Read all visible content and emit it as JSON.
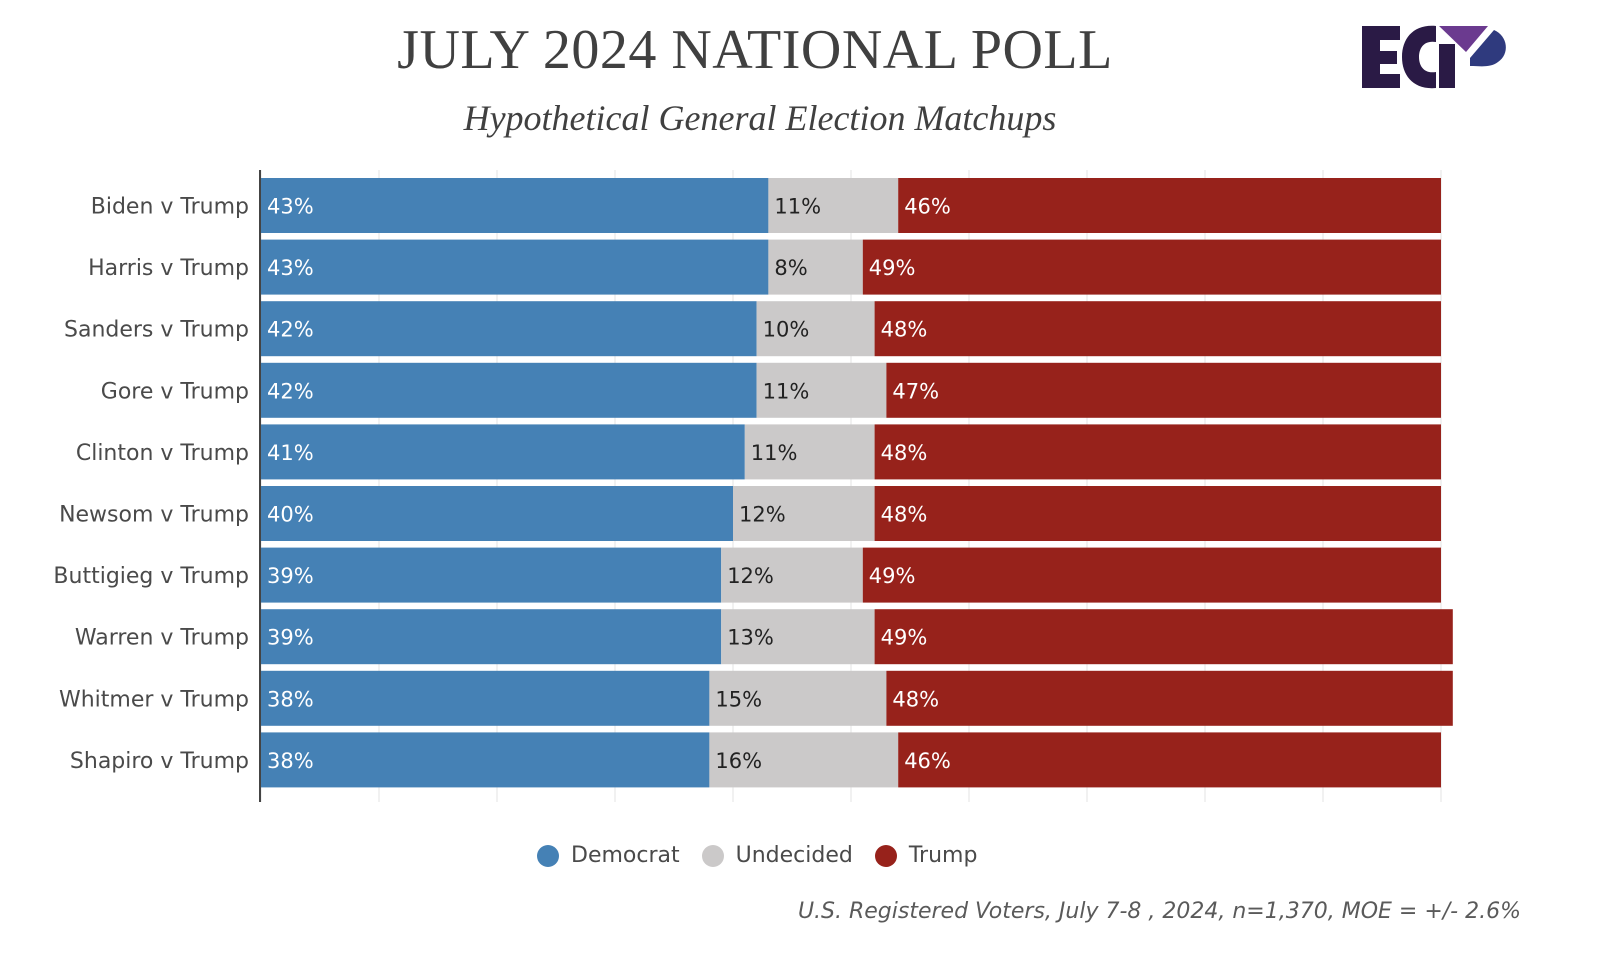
{
  "chart_data": {
    "type": "bar",
    "orientation": "horizontal-stacked-100",
    "title": "JULY 2024 NATIONAL POLL",
    "subtitle": "Hypothetical General Election Matchups",
    "categories": [
      "Biden v Trump",
      "Harris v Trump",
      "Sanders v Trump",
      "Gore v Trump",
      "Clinton v Trump",
      "Newsom v Trump",
      "Buttigieg v Trump",
      "Warren v Trump",
      "Whitmer v Trump",
      "Shapiro v Trump"
    ],
    "series": [
      {
        "name": "Democrat",
        "color": "#4581b5",
        "label_color": "#ffffff",
        "values": [
          43,
          43,
          42,
          42,
          41,
          40,
          39,
          39,
          38,
          38
        ]
      },
      {
        "name": "Undecided",
        "color": "#cbc9c9",
        "label_color": "#222222",
        "values": [
          11,
          8,
          10,
          11,
          11,
          12,
          12,
          13,
          15,
          16
        ]
      },
      {
        "name": "Trump",
        "color": "#97221b",
        "label_color": "#ffffff",
        "values": [
          46,
          49,
          48,
          47,
          48,
          48,
          49,
          49,
          48,
          46
        ]
      }
    ],
    "value_suffix": "%",
    "xlim": [
      0,
      100
    ],
    "grid": true,
    "legend": "bottom-center",
    "footnote": "U.S. Registered Voters, July 7-8 , 2024, n=1,370, MOE = +/- 2.6%"
  },
  "logo": {
    "text": "ECP",
    "colors": {
      "dark": "#2a1a45",
      "purple": "#6b3a8f",
      "navy": "#2f3a7e"
    }
  }
}
